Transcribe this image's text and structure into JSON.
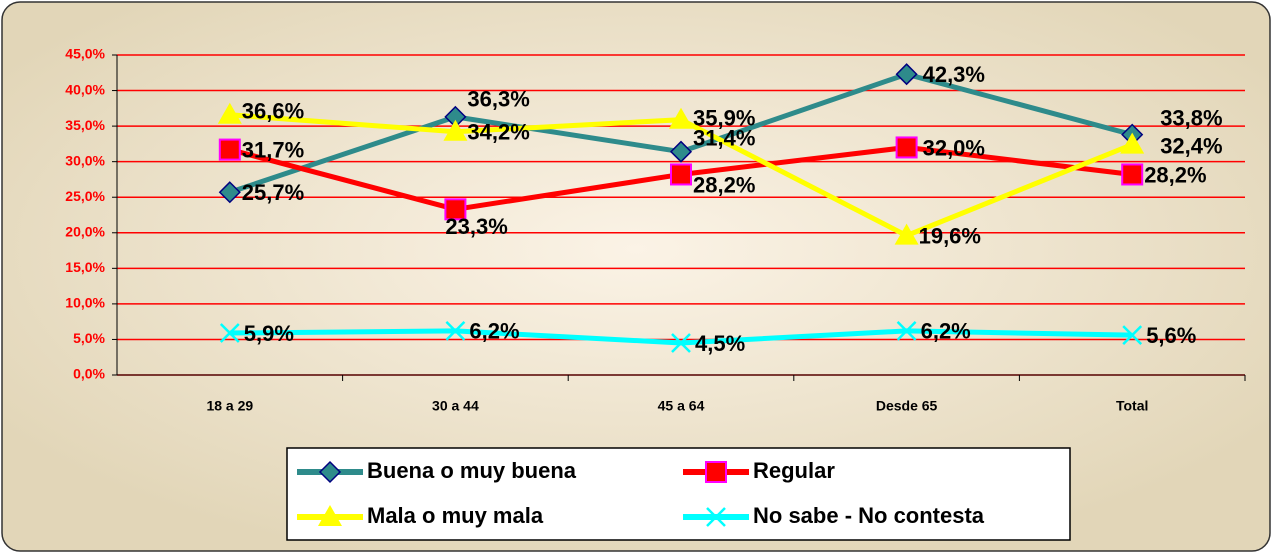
{
  "chart_data": {
    "type": "line",
    "categories": [
      "18 a 29",
      "30 a 44",
      "45 a 64",
      "Desde 65",
      "Total"
    ],
    "series": [
      {
        "name": "Buena o muy buena",
        "color": "#2e8b8b",
        "values": [
          25.7,
          36.3,
          31.4,
          42.3,
          33.8
        ],
        "value_labels": [
          "25,7%",
          "36,3%",
          "31,4%",
          "42,3%",
          "33,8%"
        ]
      },
      {
        "name": "Regular",
        "color": "#ff0000",
        "values": [
          31.7,
          23.3,
          28.2,
          32.0,
          28.2
        ],
        "value_labels": [
          "31,7%",
          "23,3%",
          "28,2%",
          "32,0%",
          "28,2%"
        ]
      },
      {
        "name": "Mala o muy mala",
        "color": "#ffff00",
        "values": [
          36.6,
          34.2,
          35.9,
          19.6,
          32.4
        ],
        "value_labels": [
          "36,6%",
          "34,2%",
          "35,9%",
          "19,6%",
          "32,4%"
        ]
      },
      {
        "name": "No sabe - No contesta",
        "color": "#00ffff",
        "values": [
          5.9,
          6.2,
          4.5,
          6.2,
          5.6
        ],
        "value_labels": [
          "5,9%",
          "6,2%",
          "4,5%",
          "6,2%",
          "5,6%"
        ]
      }
    ],
    "ylim": [
      0,
      45
    ],
    "yticks": [
      {
        "value": 0,
        "label": "0,0%"
      },
      {
        "value": 5,
        "label": "5,0%"
      },
      {
        "value": 10,
        "label": "10,0%"
      },
      {
        "value": 15,
        "label": "15,0%"
      },
      {
        "value": 20,
        "label": "20,0%"
      },
      {
        "value": 25,
        "label": "25,0%"
      },
      {
        "value": 30,
        "label": "30,0%"
      },
      {
        "value": 35,
        "label": "35,0%"
      },
      {
        "value": 40,
        "label": "40,0%"
      },
      {
        "value": 45,
        "label": "45,0%"
      }
    ],
    "grid": true,
    "legend": "bottom"
  }
}
